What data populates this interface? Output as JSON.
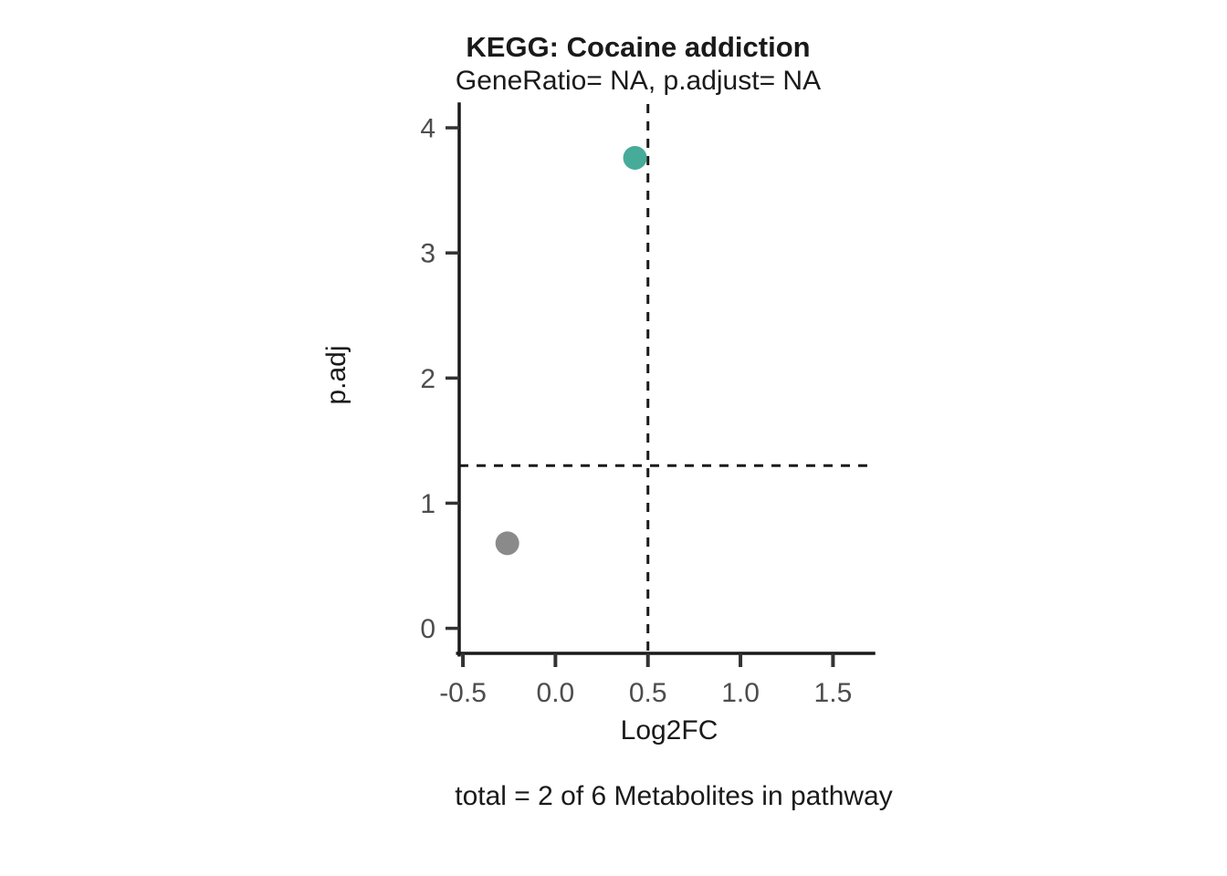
{
  "chart_data": {
    "type": "scatter",
    "title": "KEGG: Cocaine addiction",
    "subtitle": "GeneRatio= NA, p.adjust= NA",
    "xlabel": "Log2FC",
    "ylabel": "p.adj",
    "caption": "total = 2 of 6 Metabolites in pathway",
    "xlim": [
      -0.52,
      1.72
    ],
    "ylim": [
      -0.2,
      4.19
    ],
    "x_ticks": [
      -0.5,
      0.0,
      0.5,
      1.0,
      1.5
    ],
    "x_tick_labels": [
      "-0.5",
      "0.0",
      "0.5",
      "1.0",
      "1.5"
    ],
    "y_ticks": [
      0,
      1,
      2,
      3,
      4
    ],
    "y_tick_labels": [
      "0",
      "1",
      "2",
      "3",
      "4"
    ],
    "grid": false,
    "legend": "none",
    "points": [
      {
        "x": 0.43,
        "y": 3.76,
        "color": "#47AB9A"
      },
      {
        "x": -0.26,
        "y": 0.68,
        "color": "#8A8A8A"
      }
    ],
    "threshold_lines": [
      {
        "orientation": "vertical",
        "value": 0.5,
        "style": "dashed"
      },
      {
        "orientation": "horizontal",
        "value": 1.3,
        "style": "dashed"
      }
    ],
    "colors": {
      "axis_line": "#1a1a1a",
      "tick_mark": "#333333",
      "tick_label": "#4d4d4d",
      "threshold_line": "#1a1a1a",
      "text": "#1a1a1a"
    },
    "point_radius_px": 13
  }
}
